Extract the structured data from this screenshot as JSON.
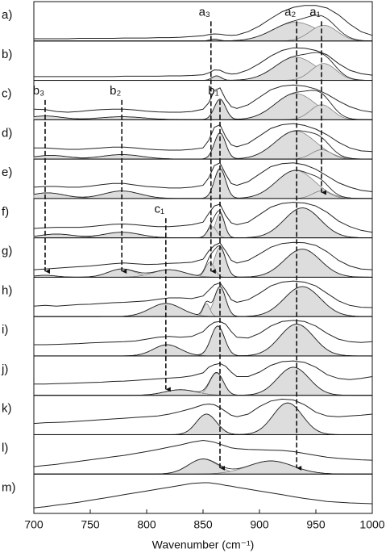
{
  "chart_data": {
    "type": "stacked-spectra",
    "x_label": "Wavenumber (cm⁻¹)",
    "xlim": [
      700,
      1000
    ],
    "xticks": [
      700,
      750,
      800,
      850,
      900,
      950,
      1000
    ],
    "line_color": "#222222",
    "component_color": "#dddddd",
    "x": [
      700,
      710,
      720,
      730,
      740,
      750,
      760,
      770,
      780,
      790,
      800,
      810,
      820,
      830,
      840,
      850,
      855,
      860,
      865,
      870,
      875,
      880,
      890,
      900,
      910,
      920,
      930,
      940,
      950,
      960,
      970,
      980,
      990,
      1000
    ],
    "panels": [
      {
        "label": "a)",
        "values": [
          0.06,
          0.06,
          0.06,
          0.06,
          0.07,
          0.07,
          0.07,
          0.07,
          0.08,
          0.08,
          0.08,
          0.09,
          0.09,
          0.1,
          0.12,
          0.14,
          0.17,
          0.19,
          0.18,
          0.16,
          0.15,
          0.16,
          0.25,
          0.4,
          0.6,
          0.78,
          0.9,
          0.95,
          0.95,
          0.88,
          0.7,
          0.45,
          0.25,
          0.15
        ],
        "components": [
          {
            "center": 932,
            "height": 0.5,
            "width": 20
          },
          {
            "center": 957,
            "height": 0.42,
            "width": 12
          },
          {
            "center": 860,
            "height": 0.05,
            "width": 4
          }
        ]
      },
      {
        "label": "b)",
        "values": [
          0.1,
          0.1,
          0.1,
          0.1,
          0.1,
          0.1,
          0.1,
          0.1,
          0.11,
          0.11,
          0.11,
          0.11,
          0.12,
          0.12,
          0.13,
          0.15,
          0.2,
          0.28,
          0.27,
          0.2,
          0.17,
          0.18,
          0.28,
          0.45,
          0.65,
          0.8,
          0.87,
          0.86,
          0.8,
          0.68,
          0.45,
          0.27,
          0.18,
          0.14
        ],
        "components": [
          {
            "center": 932,
            "height": 0.62,
            "width": 18
          },
          {
            "center": 957,
            "height": 0.45,
            "width": 11
          },
          {
            "center": 862,
            "height": 0.12,
            "width": 4
          }
        ]
      },
      {
        "label": "c)",
        "values": [
          0.28,
          0.27,
          0.22,
          0.2,
          0.22,
          0.25,
          0.27,
          0.28,
          0.28,
          0.26,
          0.23,
          0.21,
          0.2,
          0.2,
          0.22,
          0.28,
          0.45,
          0.78,
          0.85,
          0.55,
          0.35,
          0.3,
          0.4,
          0.6,
          0.8,
          0.9,
          0.93,
          0.9,
          0.82,
          0.68,
          0.5,
          0.35,
          0.25,
          0.2
        ],
        "components": [
          {
            "center": 865,
            "height": 0.55,
            "width": 5
          },
          {
            "center": 932,
            "height": 0.7,
            "width": 18
          },
          {
            "center": 955,
            "height": 0.4,
            "width": 10
          },
          {
            "center": 778,
            "height": 0.08,
            "width": 20
          },
          {
            "center": 710,
            "height": 0.1,
            "width": 15
          }
        ]
      },
      {
        "label": "d)",
        "values": [
          0.3,
          0.3,
          0.28,
          0.26,
          0.26,
          0.28,
          0.3,
          0.32,
          0.32,
          0.3,
          0.27,
          0.25,
          0.24,
          0.24,
          0.26,
          0.3,
          0.5,
          0.85,
          0.92,
          0.6,
          0.38,
          0.33,
          0.42,
          0.62,
          0.82,
          0.92,
          0.95,
          0.9,
          0.8,
          0.65,
          0.45,
          0.3,
          0.22,
          0.2
        ],
        "components": [
          {
            "center": 865,
            "height": 0.7,
            "width": 5
          },
          {
            "center": 932,
            "height": 0.75,
            "width": 18
          },
          {
            "center": 955,
            "height": 0.25,
            "width": 9
          },
          {
            "center": 778,
            "height": 0.12,
            "width": 18
          },
          {
            "center": 715,
            "height": 0.1,
            "width": 15
          }
        ]
      },
      {
        "label": "e)",
        "values": [
          0.3,
          0.32,
          0.32,
          0.3,
          0.3,
          0.33,
          0.37,
          0.4,
          0.4,
          0.36,
          0.32,
          0.3,
          0.28,
          0.28,
          0.3,
          0.35,
          0.55,
          0.88,
          0.95,
          0.65,
          0.4,
          0.35,
          0.45,
          0.65,
          0.85,
          0.93,
          0.95,
          0.9,
          0.78,
          0.6,
          0.42,
          0.3,
          0.22,
          0.18
        ],
        "components": [
          {
            "center": 865,
            "height": 0.8,
            "width": 5
          },
          {
            "center": 932,
            "height": 0.75,
            "width": 17
          },
          {
            "center": 955,
            "height": 0.2,
            "width": 8
          },
          {
            "center": 778,
            "height": 0.2,
            "width": 16
          },
          {
            "center": 712,
            "height": 0.15,
            "width": 15
          }
        ]
      },
      {
        "label": "f)",
        "values": [
          0.25,
          0.27,
          0.28,
          0.28,
          0.28,
          0.3,
          0.33,
          0.36,
          0.37,
          0.35,
          0.32,
          0.3,
          0.3,
          0.32,
          0.35,
          0.42,
          0.65,
          0.85,
          0.9,
          0.6,
          0.4,
          0.35,
          0.42,
          0.62,
          0.82,
          0.92,
          0.95,
          0.93,
          0.85,
          0.68,
          0.45,
          0.3,
          0.2,
          0.15
        ],
        "components": [
          {
            "center": 865,
            "height": 0.65,
            "width": 4
          },
          {
            "center": 858,
            "height": 0.3,
            "width": 4
          },
          {
            "center": 938,
            "height": 0.8,
            "width": 16
          },
          {
            "center": 778,
            "height": 0.15,
            "width": 16
          },
          {
            "center": 720,
            "height": 0.1,
            "width": 15
          }
        ]
      },
      {
        "label": "g)",
        "values": [
          0.2,
          0.22,
          0.24,
          0.26,
          0.28,
          0.3,
          0.33,
          0.36,
          0.38,
          0.36,
          0.34,
          0.35,
          0.37,
          0.38,
          0.4,
          0.48,
          0.7,
          0.85,
          0.92,
          0.7,
          0.45,
          0.38,
          0.45,
          0.62,
          0.8,
          0.9,
          0.93,
          0.92,
          0.85,
          0.68,
          0.45,
          0.3,
          0.22,
          0.2
        ],
        "components": [
          {
            "center": 865,
            "height": 0.8,
            "width": 5
          },
          {
            "center": 856,
            "height": 0.4,
            "width": 4
          },
          {
            "center": 938,
            "height": 0.75,
            "width": 16
          },
          {
            "center": 778,
            "height": 0.22,
            "width": 12
          },
          {
            "center": 820,
            "height": 0.2,
            "width": 14
          },
          {
            "center": 710,
            "height": 0.05,
            "width": 10
          }
        ]
      },
      {
        "label": "h)",
        "values": [
          0.28,
          0.3,
          0.28,
          0.3,
          0.32,
          0.33,
          0.35,
          0.37,
          0.38,
          0.4,
          0.42,
          0.46,
          0.5,
          0.5,
          0.48,
          0.55,
          0.7,
          0.85,
          0.9,
          0.7,
          0.45,
          0.38,
          0.45,
          0.62,
          0.82,
          0.92,
          0.95,
          0.92,
          0.82,
          0.62,
          0.42,
          0.3,
          0.25,
          0.24
        ],
        "components": [
          {
            "center": 865,
            "height": 0.8,
            "width": 5
          },
          {
            "center": 853,
            "height": 0.35,
            "width": 3
          },
          {
            "center": 938,
            "height": 0.8,
            "width": 16
          },
          {
            "center": 817,
            "height": 0.35,
            "width": 14
          }
        ]
      },
      {
        "label": "i)",
        "values": [
          0.3,
          0.3,
          0.31,
          0.32,
          0.33,
          0.35,
          0.36,
          0.37,
          0.38,
          0.4,
          0.45,
          0.5,
          0.52,
          0.5,
          0.52,
          0.65,
          0.8,
          0.9,
          0.92,
          0.85,
          0.65,
          0.5,
          0.48,
          0.6,
          0.8,
          0.92,
          0.95,
          0.92,
          0.8,
          0.6,
          0.45,
          0.38,
          0.36,
          0.38
        ],
        "components": [
          {
            "center": 863,
            "height": 0.8,
            "width": 6
          },
          {
            "center": 933,
            "height": 0.85,
            "width": 15
          },
          {
            "center": 818,
            "height": 0.3,
            "width": 12
          }
        ]
      },
      {
        "label": "j)",
        "values": [
          0.3,
          0.3,
          0.31,
          0.32,
          0.33,
          0.34,
          0.35,
          0.37,
          0.38,
          0.4,
          0.42,
          0.44,
          0.46,
          0.48,
          0.52,
          0.6,
          0.75,
          0.82,
          0.85,
          0.78,
          0.62,
          0.5,
          0.5,
          0.62,
          0.8,
          0.9,
          0.92,
          0.88,
          0.75,
          0.55,
          0.45,
          0.42,
          0.45,
          0.5
        ],
        "components": [
          {
            "center": 862,
            "height": 0.6,
            "width": 6
          },
          {
            "center": 930,
            "height": 0.75,
            "width": 14
          },
          {
            "center": 830,
            "height": 0.15,
            "width": 14
          }
        ]
      },
      {
        "label": "k)",
        "values": [
          0.3,
          0.32,
          0.33,
          0.34,
          0.36,
          0.38,
          0.4,
          0.42,
          0.44,
          0.46,
          0.48,
          0.5,
          0.55,
          0.62,
          0.7,
          0.8,
          0.82,
          0.8,
          0.72,
          0.62,
          0.52,
          0.48,
          0.55,
          0.75,
          0.9,
          0.95,
          0.93,
          0.8,
          0.6,
          0.5,
          0.48,
          0.5,
          0.52,
          0.55
        ],
        "components": [
          {
            "center": 853,
            "height": 0.55,
            "width": 9
          },
          {
            "center": 925,
            "height": 0.85,
            "width": 13
          }
        ]
      },
      {
        "label": "l)",
        "values": [
          0.2,
          0.23,
          0.26,
          0.3,
          0.34,
          0.38,
          0.42,
          0.46,
          0.5,
          0.55,
          0.6,
          0.66,
          0.72,
          0.78,
          0.85,
          0.9,
          0.88,
          0.85,
          0.8,
          0.75,
          0.7,
          0.68,
          0.66,
          0.65,
          0.64,
          0.63,
          0.6,
          0.55,
          0.5,
          0.45,
          0.42,
          0.4,
          0.38,
          0.37
        ],
        "components": [
          {
            "center": 850,
            "height": 0.4,
            "width": 13
          },
          {
            "center": 910,
            "height": 0.35,
            "width": 20
          }
        ]
      },
      {
        "label": "m)",
        "values": [
          0.15,
          0.18,
          0.22,
          0.26,
          0.3,
          0.35,
          0.4,
          0.45,
          0.5,
          0.55,
          0.6,
          0.65,
          0.7,
          0.75,
          0.8,
          0.82,
          0.82,
          0.8,
          0.78,
          0.75,
          0.73,
          0.7,
          0.65,
          0.6,
          0.55,
          0.5,
          0.45,
          0.4,
          0.36,
          0.32,
          0.3,
          0.28,
          0.27,
          0.26
        ],
        "components": []
      }
    ],
    "arrows": [
      {
        "label": "a₃",
        "x": 857,
        "from": 0,
        "to": 6
      },
      {
        "label": "a₂",
        "x": 933,
        "from": 0,
        "to": 11
      },
      {
        "label": "a₁",
        "x": 955,
        "from": 0,
        "to": 4
      },
      {
        "label": "b₁",
        "x": 865,
        "from": 2,
        "to": 11
      },
      {
        "label": "b₂",
        "x": 778,
        "from": 2,
        "to": 6
      },
      {
        "label": "b₃",
        "x": 710,
        "from": 2,
        "to": 6
      },
      {
        "label": "c₁",
        "x": 817,
        "from": 5,
        "to": 9
      }
    ]
  }
}
